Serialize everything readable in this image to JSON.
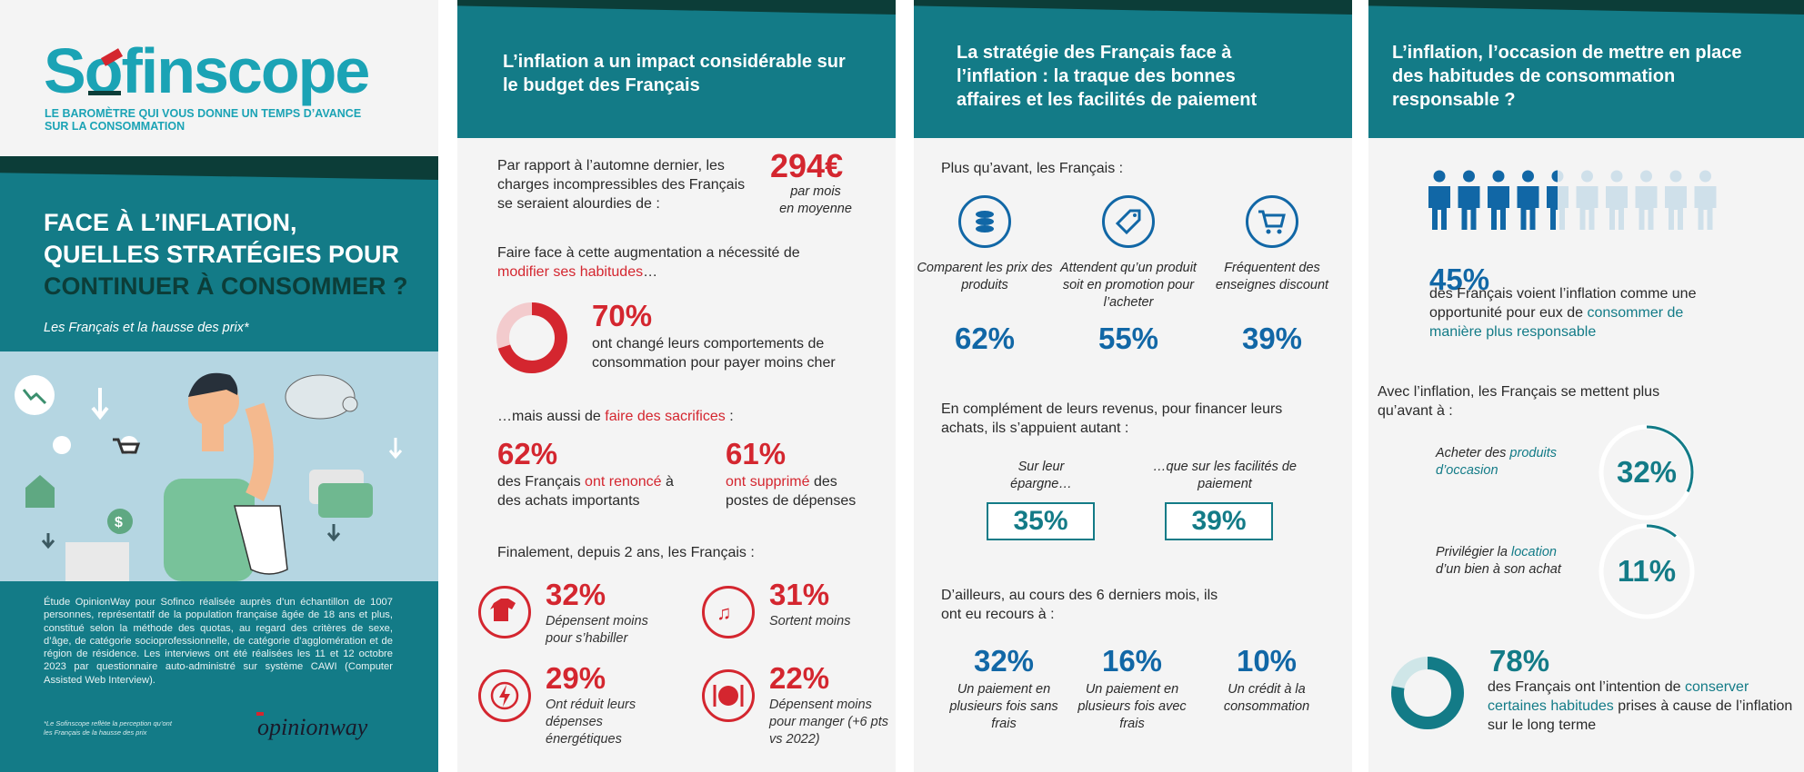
{
  "panel1": {
    "logo": "Sofinscope",
    "tagline_1": "LE BAROMÈTRE QUI VOUS DONNE UN TEMPS D’AVANCE",
    "tagline_2": "SUR LA CONSOMMATION",
    "title_1": "FACE À L’INFLATION,",
    "title_2": "QUELLES STRATÉGIES POUR",
    "title_3": "CONTINUER À CONSOMMER ?",
    "subtitle": "Les Français et la hausse des prix*",
    "methodology": "Étude OpinionWay pour Sofinco réalisée auprès d’un échantillon de 1007 personnes, représentatif de la population française âgée de 18 ans et plus, constitué selon la méthode des quotas, au regard des critères de sexe, d’âge, de catégorie socioprofessionnelle, de catégorie d’agglomération et de région de résidence. Les interviews ont été réalisées les 11 et 12 octobre 2023 par questionnaire auto-administré sur système CAWI (Computer Assisted Web Interview).",
    "footnote": "*Le Sofinscope reflète la perception qu’ont les Français de la hausse des prix",
    "partner_logo": "opinionway"
  },
  "panel2": {
    "title": "L’inflation a un impact considérable sur le budget des Français",
    "intro": "Par rapport à l’automne dernier, les charges incompressibles des Français se seraient alourdies de :",
    "amount": "294€",
    "amount_sub_1": "par mois",
    "amount_sub_2": "en moyenne",
    "habits_pre": "Faire face à cette augmentation a nécessité de ",
    "habits_hl": "modifier ses habitudes",
    "habits_post": "…",
    "donut_value": 70,
    "donut_pct": "70%",
    "donut_text": "ont changé leurs comportements de consommation pour payer moins cher",
    "sacrifice_pre": "…mais aussi de ",
    "sacrifice_hl": "faire des sacrifices",
    "sacrifice_post": " :",
    "stat_a_pct": "62%",
    "stat_a_pre": "des Français ",
    "stat_a_hl": "ont renoncé",
    "stat_a_post": " à des achats importants",
    "stat_b_pct": "61%",
    "stat_b_hl": "ont supprimé",
    "stat_b_post": " des postes de dépenses",
    "final_intro": "Finalement, depuis 2 ans, les Français :",
    "items": [
      {
        "icon": "shirt-icon",
        "pct": "32%",
        "label": "Dépensent moins pour s’habiller"
      },
      {
        "icon": "music-icon",
        "pct": "31%",
        "label": "Sortent moins"
      },
      {
        "icon": "lightning-icon",
        "pct": "29%",
        "label": "Ont réduit leurs dépenses énergétiques"
      },
      {
        "icon": "plate-icon",
        "pct": "22%",
        "label": "Dépensent moins pour manger (+6 pts vs 2022)"
      }
    ]
  },
  "panel3": {
    "title": "La stratégie des Français face à l’inflation : la traque des bonnes affaires et les facilités de paiement",
    "intro": "Plus qu’avant, les Français :",
    "items": [
      {
        "icon": "coins-icon",
        "label": "Comparent les prix des produits",
        "pct": "62%"
      },
      {
        "icon": "price-tag-icon",
        "label": "Attendent qu’un produit soit en promotion pour l’acheter",
        "pct": "55%"
      },
      {
        "icon": "shopping-cart-icon",
        "label": "Fréquentent des enseignes discount",
        "pct": "39%"
      }
    ],
    "finance_intro": "En complément de leurs revenus, pour financer leurs achats, ils s’appuient autant :",
    "boxes": [
      {
        "label": "Sur leur épargne…",
        "pct": "35%"
      },
      {
        "label": "…que sur les facilités de paiement",
        "pct": "39%"
      }
    ],
    "recourse_intro": "D’ailleurs, au cours des 6 derniers mois, ils ont eu recours à :",
    "recourse": [
      {
        "pct": "32%",
        "label": "Un paiement en plusieurs fois sans frais"
      },
      {
        "pct": "16%",
        "label": "Un paiement en plusieurs fois avec frais"
      },
      {
        "pct": "10%",
        "label": "Un crédit à la consommation"
      }
    ]
  },
  "panel4": {
    "title": "L’inflation, l’occasion de mettre en place des habitudes de consommation responsable ?",
    "people_value": 45,
    "stat_pct": "45%",
    "stat_pre": "des Français voient l’inflation comme une opportunité pour eux de ",
    "stat_hl": "consommer de manière plus responsable",
    "habits_intro": "Avec l’inflation, les Français se mettent plus qu’avant à :",
    "habits": [
      {
        "pre": "Acheter des ",
        "hl": "produits d’occasion",
        "post": "",
        "pct": "32%",
        "value": 32
      },
      {
        "pre": "Privilégier la ",
        "hl": "location",
        "post": " d’un bien à son achat",
        "pct": "11%",
        "value": 11
      }
    ],
    "donut_value": 78,
    "donut_pct": "78%",
    "donut_pre": "des Français ont l’intention de ",
    "donut_hl": "conserver certaines habitudes",
    "donut_post": " prises à cause de l’inflation sur le long terme"
  },
  "colors": {
    "teal": "#137b87",
    "dark": "#0c3d38",
    "red": "#d4262f",
    "blue": "#1167a6",
    "logo": "#1ba3b5"
  }
}
